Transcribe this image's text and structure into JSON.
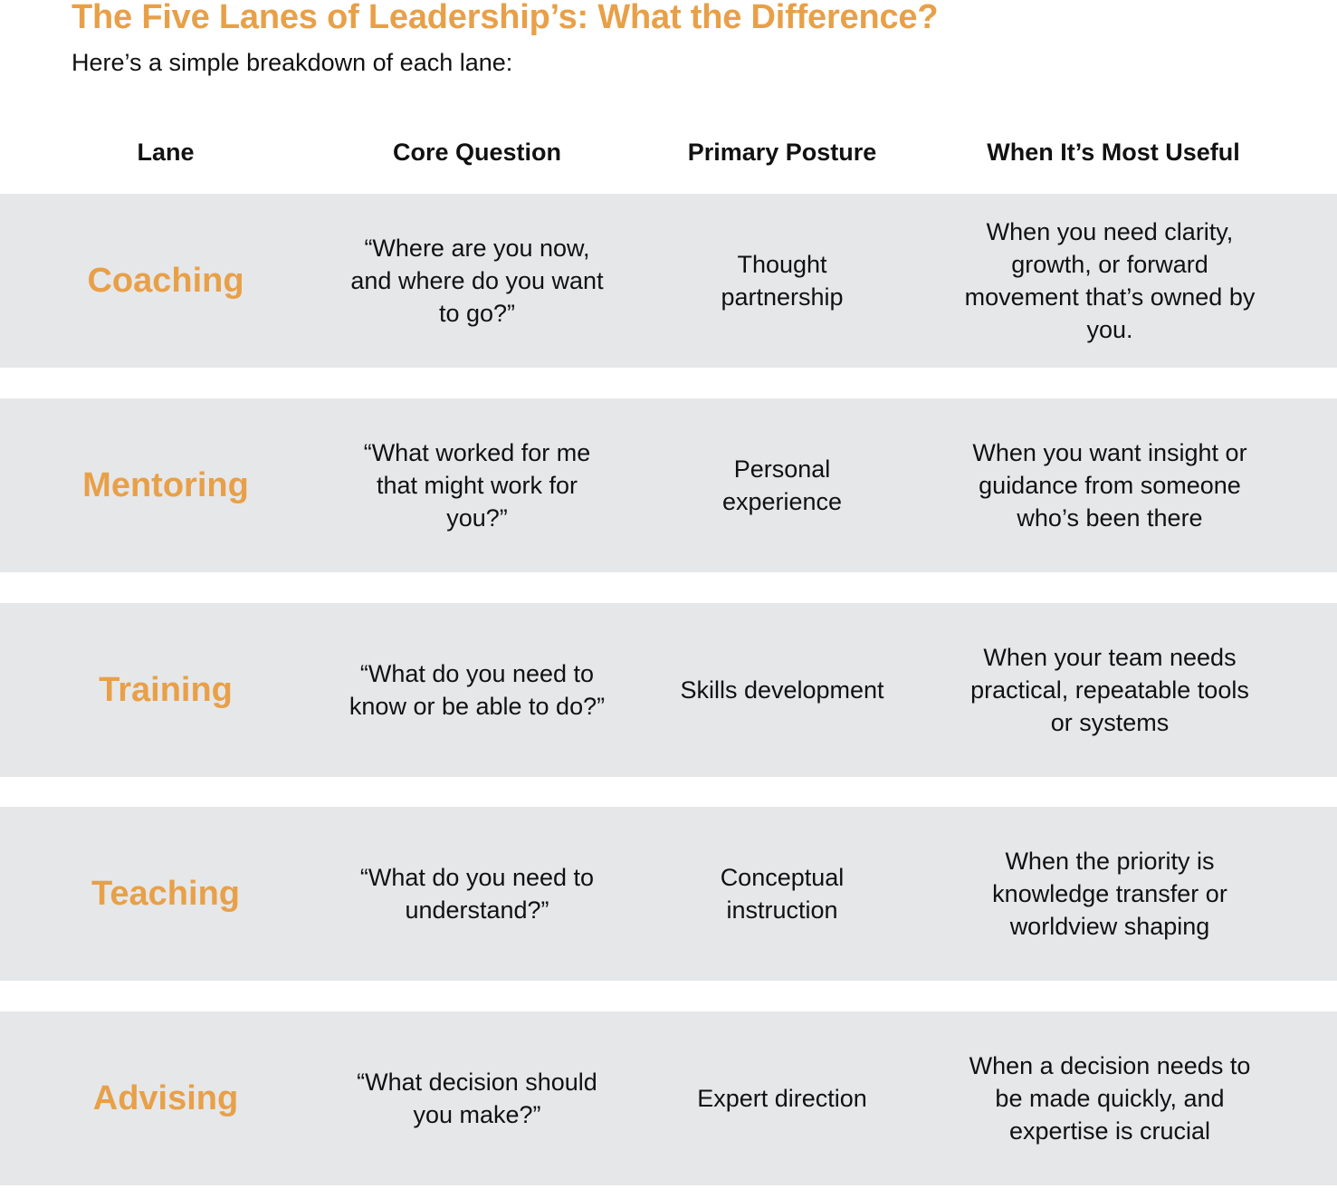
{
  "header": {
    "title": "The Five Lanes of Leadership’s: What the Difference?",
    "subtitle": "Here’s a simple breakdown of each lane:"
  },
  "accent_color": "#e8a048",
  "row_background": "#e6e7e9",
  "table": {
    "columns": [
      "Lane",
      "Core Question",
      "Primary Posture",
      "When It’s Most Useful"
    ],
    "rows": [
      {
        "lane": "Coaching",
        "question": "“Where are you now, and where do you want to go?”",
        "posture": "Thought partnership",
        "useful": "When you need clarity, growth, or forward movement that’s owned by you."
      },
      {
        "lane": "Mentoring",
        "question": "“What worked for me that might work for you?”",
        "posture": "Personal experience",
        "useful": "When you want insight or guidance from someone who’s been there"
      },
      {
        "lane": "Training",
        "question": "“What do you need to know or be able to do?”",
        "posture": "Skills development",
        "useful": "When your team needs practical, repeatable tools or systems"
      },
      {
        "lane": "Teaching",
        "question": "“What do you need to understand?”",
        "posture": "Conceptual instruction",
        "useful": "When the priority is knowledge transfer or worldview shaping"
      },
      {
        "lane": "Advising",
        "question": "“What decision should you make?”",
        "posture": "Expert direction",
        "useful": "When a decision needs to be made quickly, and expertise is crucial"
      }
    ]
  }
}
